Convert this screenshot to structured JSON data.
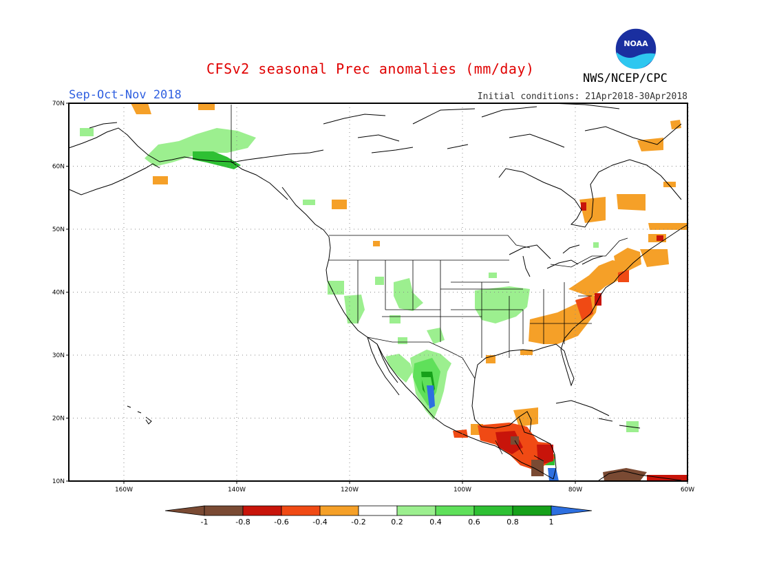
{
  "header": {
    "title": "CFSv2 seasonal Prec anomalies (mm/day)",
    "agency": "NWS/NCEP/CPC",
    "season": "Sep-Oct-Nov 2018",
    "initial_conditions": "Initial conditions: 21Apr2018-30Apr2018",
    "logo_text": "NOAA"
  },
  "map": {
    "lon_labels": [
      "160W",
      "140W",
      "120W",
      "100W",
      "80W",
      "60W"
    ],
    "lat_labels": [
      "70N",
      "60N",
      "50N",
      "40N",
      "30N",
      "20N",
      "10N"
    ]
  },
  "colorbar": {
    "labels": [
      "-1",
      "-0.8",
      "-0.6",
      "-0.4",
      "-0.2",
      "0.2",
      "0.4",
      "0.6",
      "0.8",
      "1"
    ],
    "colors": [
      "#7a4a33",
      "#c8140a",
      "#f04a14",
      "#f5a028",
      "#ffffff",
      "#9cef8f",
      "#5fe05a",
      "#2ec033",
      "#16a11a",
      "#2d6fe0"
    ]
  },
  "colors": {
    "title": "#e00000",
    "season": "#2f5fe0",
    "dry": "#f5a028",
    "wet": "#9cef8f"
  }
}
